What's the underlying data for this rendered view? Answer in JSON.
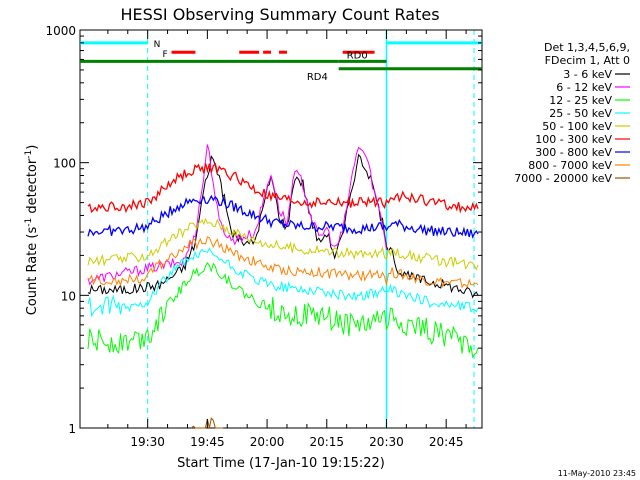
{
  "chart_data": {
    "type": "line",
    "title": "HESSI Observing Summary Count Rates",
    "xlabel": "Start Time (17-Jan-10 19:15:22)",
    "ylabel_main": "Count Rate (s",
    "ylabel_sup1": "-1",
    "ylabel_mid": " detector",
    "ylabel_sup2": "-1",
    "ylabel_end": ")",
    "yscale": "log",
    "ylim": [
      1,
      1000
    ],
    "xlim": [
      -2,
      99
    ],
    "x_unit": "minutes after 19:15:22",
    "x_ticks": [
      {
        "t": 15,
        "label": "19:30"
      },
      {
        "t": 30,
        "label": "19:45"
      },
      {
        "t": 45,
        "label": "20:00"
      },
      {
        "t": 60,
        "label": "20:15"
      },
      {
        "t": 75,
        "label": "20:30"
      },
      {
        "t": 90,
        "label": "20:45"
      }
    ],
    "y_ticks": [
      {
        "v": 1,
        "label": "1"
      },
      {
        "v": 10,
        "label": "10"
      },
      {
        "v": 100,
        "label": "100"
      },
      {
        "v": 1000,
        "label": "1000"
      }
    ],
    "legend_title": [
      "Det 1,3,4,5,6,9,",
      "FDecim 1, Att 0"
    ],
    "series": [
      {
        "name": "3 - 6 keV",
        "color": "#000000",
        "x": [
          0,
          10,
          18,
          24,
          27,
          29,
          31,
          33,
          36,
          40,
          42,
          46,
          48,
          50,
          52,
          54,
          56,
          58,
          60,
          62,
          64,
          66,
          68,
          70,
          72,
          74,
          75,
          76,
          78,
          80,
          84,
          90,
          98
        ],
        "values": [
          11,
          11,
          12,
          16,
          25,
          60,
          110,
          80,
          30,
          24,
          26,
          80,
          40,
          32,
          80,
          70,
          38,
          25,
          30,
          20,
          28,
          60,
          110,
          90,
          60,
          35,
          22,
          25,
          15,
          14,
          13,
          12,
          10
        ]
      },
      {
        "name": "6 - 12 keV",
        "color": "#ff00ff",
        "x": [
          0,
          24,
          27,
          29,
          30,
          31,
          33,
          36,
          40,
          42,
          46,
          48,
          50,
          52,
          54,
          56,
          58,
          60,
          62,
          64,
          66,
          68,
          70,
          72,
          74,
          75
        ],
        "values": [
          13,
          18,
          30,
          75,
          140,
          90,
          35,
          26,
          28,
          30,
          85,
          45,
          35,
          85,
          70,
          40,
          27,
          32,
          22,
          30,
          70,
          135,
          110,
          60,
          35,
          22
        ]
      },
      {
        "name": "12 - 25 keV",
        "color": "#00ff00",
        "x": [
          0,
          10,
          15,
          18,
          22,
          26,
          30,
          32,
          34,
          38,
          42,
          46,
          50,
          54,
          58,
          62,
          66,
          70,
          74,
          75,
          76,
          80,
          85,
          90,
          98
        ],
        "values": [
          4.5,
          4.5,
          5,
          7,
          10,
          14,
          17,
          16,
          14,
          11,
          9,
          8,
          7.5,
          7,
          7,
          6.5,
          6,
          6,
          7,
          6,
          7,
          6,
          5.5,
          5,
          4
        ]
      },
      {
        "name": "25 - 50 keV",
        "color": "#00ffff",
        "x": [
          0,
          10,
          15,
          18,
          22,
          26,
          30,
          32,
          34,
          38,
          42,
          46,
          50,
          54,
          58,
          62,
          66,
          70,
          74,
          75,
          76,
          80,
          85,
          90,
          98
        ],
        "values": [
          8,
          8,
          9,
          12,
          16,
          19,
          21,
          20,
          18,
          15,
          13,
          12,
          11.5,
          11,
          11,
          10,
          10,
          10,
          11,
          10,
          11,
          10,
          9,
          8.5,
          8
        ]
      },
      {
        "name": "50 - 100 keV",
        "color": "#cccc00",
        "x": [
          0,
          10,
          15,
          18,
          22,
          26,
          30,
          32,
          34,
          38,
          42,
          46,
          50,
          54,
          58,
          62,
          66,
          70,
          74,
          75,
          76,
          80,
          85,
          90,
          98
        ],
        "values": [
          18,
          19,
          20,
          23,
          28,
          33,
          36,
          35,
          33,
          29,
          26,
          24,
          23,
          22,
          22,
          21,
          21,
          20,
          21,
          19,
          22,
          20,
          19,
          18,
          17
        ]
      },
      {
        "name": "100 - 300 keV",
        "color": "#ff0000",
        "x": [
          0,
          10,
          15,
          18,
          22,
          26,
          30,
          32,
          34,
          38,
          42,
          46,
          50,
          54,
          58,
          62,
          66,
          70,
          74,
          75,
          76,
          80,
          85,
          90,
          98
        ],
        "values": [
          46,
          47,
          50,
          60,
          75,
          87,
          92,
          90,
          86,
          75,
          62,
          55,
          52,
          50,
          50,
          50,
          50,
          50,
          52,
          48,
          58,
          55,
          52,
          48,
          45
        ]
      },
      {
        "name": "300 - 800 keV",
        "color": "#0000ff",
        "x": [
          0,
          10,
          15,
          18,
          22,
          26,
          30,
          32,
          34,
          38,
          42,
          46,
          50,
          54,
          58,
          62,
          66,
          70,
          74,
          75,
          76,
          80,
          85,
          90,
          98
        ],
        "values": [
          30,
          31,
          33,
          38,
          46,
          52,
          54,
          53,
          50,
          45,
          40,
          36,
          34,
          33,
          33,
          33,
          32,
          32,
          33,
          31,
          35,
          33,
          31,
          30,
          29
        ]
      },
      {
        "name": "800 - 7000 keV",
        "color": "#ff8000",
        "x": [
          0,
          10,
          15,
          18,
          22,
          26,
          30,
          32,
          34,
          38,
          42,
          46,
          50,
          54,
          58,
          62,
          66,
          70,
          74,
          75,
          76,
          80,
          85,
          90,
          98
        ],
        "values": [
          13,
          13,
          14,
          17,
          21,
          24,
          26,
          25,
          23,
          20,
          18,
          16,
          15.5,
          15,
          15,
          14.5,
          14,
          14,
          15,
          13,
          15,
          14,
          13,
          12.5,
          12
        ]
      },
      {
        "name": "7000 - 20000 keV",
        "color": "#a05000",
        "x": [
          26,
          28,
          30,
          32,
          34
        ],
        "values": [
          1,
          1,
          1,
          1,
          1
        ]
      }
    ],
    "flag_labels": {
      "n": "N",
      "f": "F",
      "rd0": "RD0",
      "rd4": "RD4"
    },
    "flag_values": {
      "high": 800,
      "mid": 680,
      "low": 580,
      "lower": 510
    },
    "n_flag_segments": [
      [
        -2,
        15
      ],
      [
        75,
        99
      ]
    ],
    "f_flag_segments": [
      [
        21,
        27
      ],
      [
        38,
        43
      ],
      [
        44,
        46
      ],
      [
        48,
        50
      ],
      [
        64,
        72
      ]
    ],
    "rd0_flag_segment": [
      -2,
      63
    ],
    "rd0_flag_segment2": [
      63,
      75
    ],
    "rd4_flag_segment": [
      63,
      99
    ],
    "vlines_dashed": [
      15,
      97
    ],
    "vlines_solid": [
      75
    ],
    "vline_color": "#00ffff"
  },
  "footer": {
    "date": "11-May-2010 23:45"
  }
}
